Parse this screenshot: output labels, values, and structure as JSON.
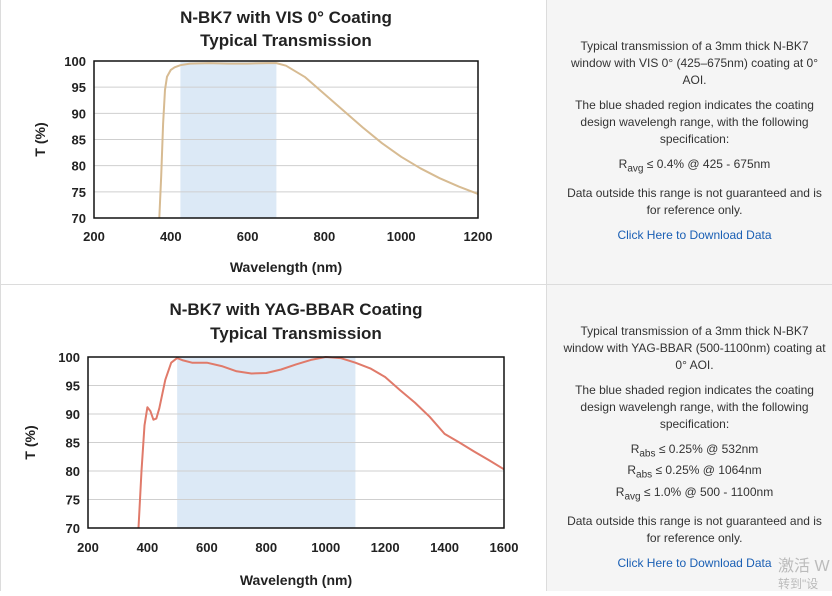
{
  "panels": [
    {
      "id": "vis",
      "title_lines": [
        "N-BK7 with VIS 0° Coating",
        "Typical Transmission"
      ],
      "description": "Typical transmission of a 3mm thick N-BK7 window with VIS 0° (425–675nm) coating at 0° AOI.",
      "shaded_note": "The blue shaded region indicates the coating design wavelengh range, with the following specification:",
      "specs": [
        {
          "sym": "R",
          "sub": "avg",
          "text": " ≤ 0.4% @ 425 - 675nm"
        }
      ],
      "disclaimer": "Data outside this range is not guaranteed and is for reference only.",
      "download_label": "Click Here to Download Data"
    },
    {
      "id": "yag",
      "title_lines": [
        "N-BK7 with YAG-BBAR Coating",
        "Typical Transmission"
      ],
      "description": "Typical transmission of a 3mm thick N-BK7 window with YAG-BBAR (500-1100nm) coating at 0° AOI.",
      "shaded_note": "The blue shaded region indicates the coating design wavelengh range, with the following specification:",
      "specs": [
        {
          "sym": "R",
          "sub": "abs",
          "text": " ≤ 0.25% @ 532nm"
        },
        {
          "sym": "R",
          "sub": "abs",
          "text": " ≤ 0.25% @ 1064nm"
        },
        {
          "sym": "R",
          "sub": "avg",
          "text": " ≤ 1.0% @ 500 - 1100nm"
        }
      ],
      "disclaimer": "Data outside this range is not guaranteed and is for reference only.",
      "download_label": "Click Here to Download Data"
    }
  ],
  "watermark": {
    "line1": "激活 W",
    "line2": "转到\"设"
  },
  "chart_data": [
    {
      "type": "line",
      "title": "N-BK7 with VIS 0° Coating Typical Transmission",
      "xlabel": "Wavelength (nm)",
      "ylabel": "T (%)",
      "xlim": [
        200,
        1200
      ],
      "ylim": [
        70,
        100
      ],
      "xticks": [
        200,
        400,
        600,
        800,
        1000,
        1200
      ],
      "yticks": [
        70,
        75,
        80,
        85,
        90,
        95,
        100
      ],
      "grid": "horizontal",
      "shaded_range": [
        425,
        675
      ],
      "shade_color": "#dce9f6",
      "series": [
        {
          "color": "#d7bb92",
          "x": [
            370,
            375,
            380,
            385,
            390,
            400,
            410,
            425,
            450,
            500,
            550,
            600,
            650,
            675,
            700,
            750,
            800,
            850,
            900,
            950,
            1000,
            1050,
            1100,
            1150,
            1200
          ],
          "y": [
            70,
            78,
            88,
            94.5,
            97,
            98.3,
            98.8,
            99.2,
            99.5,
            99.6,
            99.5,
            99.5,
            99.6,
            99.6,
            99.1,
            96.9,
            93.7,
            90.5,
            87.3,
            84.3,
            81.7,
            79.5,
            77.6,
            76,
            74.6
          ]
        }
      ]
    },
    {
      "type": "line",
      "title": "N-BK7 with YAG-BBAR Coating Typical Transmission",
      "xlabel": "Wavelength (nm)",
      "ylabel": "T (%)",
      "xlim": [
        200,
        1600
      ],
      "ylim": [
        70,
        100
      ],
      "xticks": [
        200,
        400,
        600,
        800,
        1000,
        1200,
        1400,
        1600
      ],
      "yticks": [
        70,
        75,
        80,
        85,
        90,
        95,
        100
      ],
      "grid": "horizontal",
      "shaded_range": [
        500,
        1100
      ],
      "shade_color": "#dce9f6",
      "series": [
        {
          "color": "#e07a6a",
          "x": [
            370,
            380,
            390,
            400,
            410,
            420,
            430,
            440,
            460,
            480,
            500,
            520,
            550,
            600,
            650,
            700,
            750,
            800,
            850,
            900,
            950,
            1000,
            1050,
            1100,
            1150,
            1200,
            1250,
            1300,
            1350,
            1400,
            1450,
            1500,
            1550,
            1600
          ],
          "y": [
            70,
            80,
            88,
            91.2,
            90.5,
            89,
            89.2,
            91,
            96,
            99,
            99.8,
            99.4,
            99,
            99,
            98.4,
            97.5,
            97.1,
            97.2,
            97.8,
            98.7,
            99.5,
            100,
            99.8,
            99,
            98,
            96.5,
            94.2,
            92,
            89.5,
            86.5,
            85,
            83.4,
            81.9,
            80.3
          ]
        }
      ]
    }
  ]
}
